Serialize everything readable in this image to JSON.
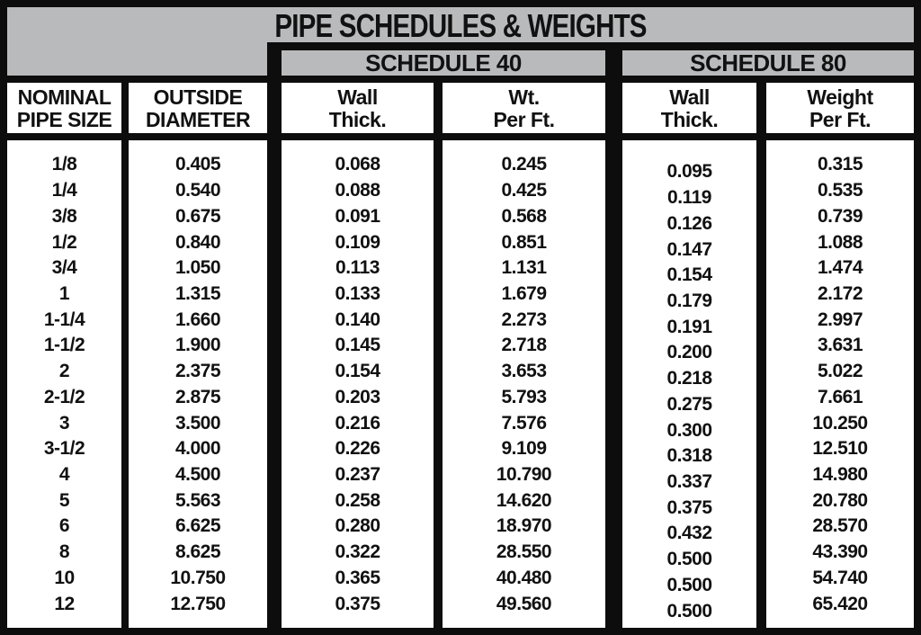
{
  "title": "PIPE SCHEDULES & WEIGHTS",
  "groups": {
    "schedule40": "SCHEDULE 40",
    "schedule80": "SCHEDULE 80"
  },
  "columns": {
    "size": "NOMINAL\nPIPE SIZE",
    "od": "OUTSIDE\nDIAMETER",
    "s40_wall": "Wall\nThick.",
    "s40_wt": "Wt.\nPer Ft.",
    "s80_wall": "Wall\nThick.",
    "s80_wt": "Weight\nPer Ft."
  },
  "colors": {
    "panel_gray": "#b9babc",
    "line_black": "#0d0d0d",
    "cell_white": "#ffffff",
    "text_black": "#111111"
  },
  "rows": [
    {
      "size": "1/8",
      "od": "0.405",
      "s40_wall": "0.068",
      "s40_wt": "0.245",
      "s80_wall": "0.095",
      "s80_wt": "0.315"
    },
    {
      "size": "1/4",
      "od": "0.540",
      "s40_wall": "0.088",
      "s40_wt": "0.425",
      "s80_wall": "0.119",
      "s80_wt": "0.535"
    },
    {
      "size": "3/8",
      "od": "0.675",
      "s40_wall": "0.091",
      "s40_wt": "0.568",
      "s80_wall": "0.126",
      "s80_wt": "0.739"
    },
    {
      "size": "1/2",
      "od": "0.840",
      "s40_wall": "0.109",
      "s40_wt": "0.851",
      "s80_wall": "0.147",
      "s80_wt": "1.088"
    },
    {
      "size": "3/4",
      "od": "1.050",
      "s40_wall": "0.113",
      "s40_wt": "1.131",
      "s80_wall": "0.154",
      "s80_wt": "1.474"
    },
    {
      "size": "1",
      "od": "1.315",
      "s40_wall": "0.133",
      "s40_wt": "1.679",
      "s80_wall": "0.179",
      "s80_wt": "2.172"
    },
    {
      "size": "1-1/4",
      "od": "1.660",
      "s40_wall": "0.140",
      "s40_wt": "2.273",
      "s80_wall": "0.191",
      "s80_wt": "2.997"
    },
    {
      "size": "1-1/2",
      "od": "1.900",
      "s40_wall": "0.145",
      "s40_wt": "2.718",
      "s80_wall": "0.200",
      "s80_wt": "3.631"
    },
    {
      "size": "2",
      "od": "2.375",
      "s40_wall": "0.154",
      "s40_wt": "3.653",
      "s80_wall": "0.218",
      "s80_wt": "5.022"
    },
    {
      "size": "2-1/2",
      "od": "2.875",
      "s40_wall": "0.203",
      "s40_wt": "5.793",
      "s80_wall": "0.275",
      "s80_wt": "7.661"
    },
    {
      "size": "3",
      "od": "3.500",
      "s40_wall": "0.216",
      "s40_wt": "7.576",
      "s80_wall": "0.300",
      "s80_wt": "10.250"
    },
    {
      "size": "3-1/2",
      "od": "4.000",
      "s40_wall": "0.226",
      "s40_wt": "9.109",
      "s80_wall": "0.318",
      "s80_wt": "12.510"
    },
    {
      "size": "4",
      "od": "4.500",
      "s40_wall": "0.237",
      "s40_wt": "10.790",
      "s80_wall": "0.337",
      "s80_wt": "14.980"
    },
    {
      "size": "5",
      "od": "5.563",
      "s40_wall": "0.258",
      "s40_wt": "14.620",
      "s80_wall": "0.375",
      "s80_wt": "20.780"
    },
    {
      "size": "6",
      "od": "6.625",
      "s40_wall": "0.280",
      "s40_wt": "18.970",
      "s80_wall": "0.432",
      "s80_wt": "28.570"
    },
    {
      "size": "8",
      "od": "8.625",
      "s40_wall": "0.322",
      "s40_wt": "28.550",
      "s80_wall": "0.500",
      "s80_wt": "43.390"
    },
    {
      "size": "10",
      "od": "10.750",
      "s40_wall": "0.365",
      "s40_wt": "40.480",
      "s80_wall": "0.500",
      "s80_wt": "54.740"
    },
    {
      "size": "12",
      "od": "12.750",
      "s40_wall": "0.375",
      "s40_wt": "49.560",
      "s80_wall": "0.500",
      "s80_wt": "65.420"
    }
  ]
}
